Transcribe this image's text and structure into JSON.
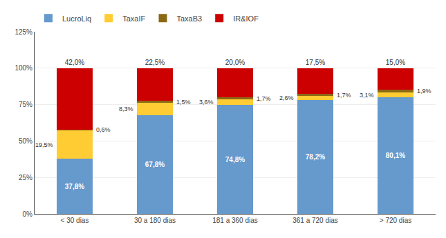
{
  "chart_data": {
    "type": "bar",
    "stacked": true,
    "categories": [
      "< 30 dias",
      "30 a 180 dias",
      "181 a 360 dias",
      "361 a 720 dias",
      "> 720 dias"
    ],
    "series": [
      {
        "name": "LucroLiq",
        "color": "#6699CC",
        "values": [
          37.8,
          67.8,
          74.8,
          78.2,
          80.1
        ],
        "value_labels": [
          "37,8%",
          "67,8%",
          "74,8%",
          "78,2%",
          "80,1%"
        ]
      },
      {
        "name": "TaxaIF",
        "color": "#FFCC33",
        "values": [
          19.5,
          8.3,
          3.6,
          2.6,
          3.1
        ],
        "value_labels": [
          "19,5%",
          "8,3%",
          "3,6%",
          "2,6%",
          "3,1%"
        ]
      },
      {
        "name": "TaxaB3",
        "color": "#8B6914",
        "values": [
          0.6,
          1.5,
          1.7,
          1.7,
          1.9
        ],
        "value_labels": [
          "0,6%",
          "1,5%",
          "1,7%",
          "1,7%",
          "1,9%"
        ]
      },
      {
        "name": "IR&IOF",
        "color": "#CC0000",
        "values": [
          42.0,
          22.5,
          20.0,
          17.5,
          15.0
        ],
        "value_labels": [
          "42,0%",
          "22,5%",
          "20,0%",
          "17,5%",
          "15,0%"
        ]
      }
    ],
    "ylim": [
      0,
      125
    ],
    "yticks": [
      {
        "value": 0,
        "label": "0%"
      },
      {
        "value": 25,
        "label": "25%"
      },
      {
        "value": 50,
        "label": "50%"
      },
      {
        "value": 75,
        "label": "75%"
      },
      {
        "value": 100,
        "label": "100%"
      },
      {
        "value": 125,
        "label": "125%"
      }
    ],
    "grid": true,
    "legend": "upper left",
    "data_labels": true
  }
}
